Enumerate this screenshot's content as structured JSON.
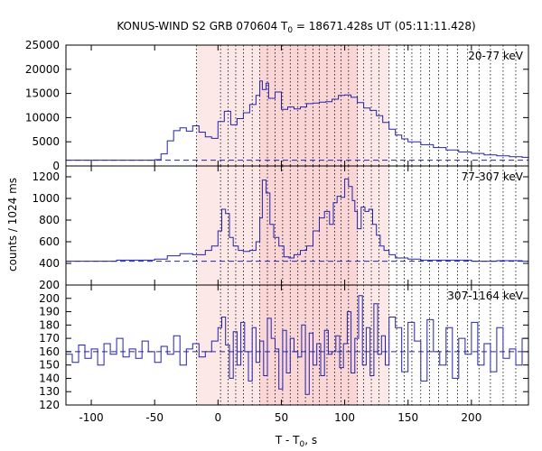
{
  "chart_data": {
    "type": "line",
    "title": {
      "prefix": "KONUS-WIND S2 GRB 070604 T",
      "sub": "0",
      "suffix": " = 18671.428s UT (05:11:11.428)"
    },
    "xlabel": {
      "prefix": "T - T",
      "sub": "0",
      "suffix": ", s"
    },
    "ylabel": "counts / 1024 ms",
    "xlim": [
      -120,
      245
    ],
    "xticks": [
      -100,
      -50,
      0,
      50,
      100,
      150,
      200
    ],
    "x_tick_labels": [
      "-100",
      "-50",
      "0",
      "50",
      "100",
      "150",
      "200"
    ],
    "colors": {
      "series": "#2222aa",
      "shade": "#fde8e8",
      "shade_dark": "#f8c6c6",
      "vlines": "#000000"
    },
    "shaded_region": [
      -17,
      135
    ],
    "darker_region": [
      33,
      110
    ],
    "dotted_vlines": [
      -17,
      2,
      8,
      14,
      20,
      27,
      33,
      39,
      45,
      51,
      57,
      63,
      69,
      75,
      80,
      86,
      92,
      97,
      103,
      110,
      115,
      121,
      127,
      135,
      141,
      147,
      153,
      160,
      167,
      174,
      181,
      189,
      197,
      206,
      215,
      225,
      235
    ],
    "panels": [
      {
        "label": "20-77 keV",
        "ylim": [
          0,
          25000
        ],
        "yticks": [
          0,
          5000,
          10000,
          15000,
          20000,
          25000
        ],
        "y_tick_labels": [
          "0",
          "5000",
          "10000",
          "15000",
          "20000",
          "25000"
        ],
        "background": 1200,
        "series": {
          "name": "20-77 keV",
          "x": [
            -120,
            -50,
            -45,
            -40,
            -35,
            -30,
            -25,
            -20,
            -15,
            -10,
            -5,
            0,
            5,
            10,
            15,
            20,
            25,
            30,
            33,
            35,
            38,
            40,
            45,
            50,
            55,
            60,
            65,
            70,
            75,
            80,
            85,
            90,
            95,
            100,
            105,
            110,
            115,
            120,
            125,
            130,
            135,
            140,
            145,
            150,
            160,
            170,
            180,
            190,
            200,
            210,
            220,
            230,
            240
          ],
          "y": [
            1200,
            1300,
            2500,
            5200,
            7300,
            7900,
            7200,
            8300,
            7000,
            6000,
            5700,
            9200,
            11300,
            8500,
            9800,
            11000,
            12700,
            14600,
            17600,
            15800,
            17100,
            14000,
            15300,
            11700,
            12200,
            11800,
            12200,
            12900,
            13000,
            13200,
            13300,
            13800,
            14600,
            14700,
            14200,
            13100,
            12000,
            11500,
            10400,
            9000,
            7600,
            6400,
            5600,
            5000,
            4400,
            3800,
            3300,
            2900,
            2600,
            2300,
            2100,
            1900,
            1800
          ]
        }
      },
      {
        "label": "77-307 keV",
        "ylim": [
          200,
          1300
        ],
        "yticks": [
          200,
          400,
          600,
          800,
          1000,
          1200
        ],
        "y_tick_labels": [
          "200",
          "400",
          "600",
          "800",
          "1000",
          "1200"
        ],
        "background": 420,
        "series": {
          "name": "77-307 keV",
          "x": [
            -120,
            -80,
            -50,
            -40,
            -30,
            -20,
            -10,
            -5,
            0,
            3,
            6,
            9,
            12,
            16,
            20,
            25,
            30,
            33,
            35,
            38,
            41,
            44,
            48,
            52,
            56,
            60,
            65,
            70,
            75,
            80,
            84,
            88,
            91,
            94,
            97,
            100,
            103,
            106,
            108,
            110,
            113,
            116,
            119,
            122,
            125,
            128,
            131,
            135,
            140,
            150,
            160,
            180,
            200,
            220,
            240
          ],
          "y": [
            420,
            430,
            440,
            470,
            490,
            480,
            520,
            560,
            700,
            900,
            860,
            640,
            560,
            520,
            510,
            520,
            600,
            820,
            1170,
            1050,
            760,
            640,
            560,
            460,
            450,
            480,
            520,
            560,
            700,
            820,
            880,
            760,
            960,
            1020,
            1010,
            1180,
            1110,
            980,
            880,
            720,
            920,
            880,
            900,
            760,
            660,
            560,
            520,
            480,
            450,
            440,
            430,
            430,
            420,
            425,
            420
          ]
        }
      },
      {
        "label": "307-1164 keV",
        "ylim": [
          120,
          210
        ],
        "yticks": [
          120,
          130,
          140,
          150,
          160,
          170,
          180,
          190,
          200
        ],
        "y_tick_labels": [
          "120",
          "130",
          "140",
          "150",
          "160",
          "170",
          "180",
          "190",
          "200"
        ],
        "background": 160,
        "series": {
          "name": "307-1164 keV",
          "x": [
            -120,
            -115,
            -110,
            -105,
            -100,
            -95,
            -90,
            -85,
            -80,
            -75,
            -70,
            -65,
            -60,
            -55,
            -50,
            -45,
            -40,
            -35,
            -30,
            -25,
            -20,
            -15,
            -10,
            -5,
            0,
            3,
            6,
            9,
            12,
            15,
            18,
            21,
            24,
            27,
            30,
            33,
            36,
            39,
            42,
            45,
            48,
            51,
            54,
            57,
            60,
            63,
            66,
            69,
            72,
            75,
            78,
            81,
            84,
            87,
            90,
            93,
            96,
            99,
            102,
            105,
            108,
            111,
            114,
            117,
            120,
            123,
            126,
            129,
            132,
            135,
            140,
            145,
            150,
            155,
            160,
            165,
            170,
            175,
            180,
            185,
            190,
            195,
            200,
            205,
            210,
            215,
            220,
            225,
            230,
            235,
            240
          ],
          "y": [
            158,
            152,
            165,
            155,
            162,
            150,
            166,
            158,
            170,
            156,
            162,
            155,
            168,
            160,
            152,
            164,
            158,
            172,
            150,
            162,
            166,
            156,
            160,
            168,
            178,
            186,
            165,
            140,
            175,
            150,
            182,
            160,
            138,
            178,
            152,
            168,
            142,
            185,
            170,
            162,
            132,
            176,
            144,
            170,
            160,
            156,
            180,
            128,
            174,
            150,
            166,
            142,
            176,
            158,
            160,
            172,
            148,
            166,
            190,
            144,
            170,
            202,
            150,
            178,
            142,
            196,
            158,
            172,
            150,
            186,
            178,
            145,
            182,
            168,
            138,
            184,
            160,
            150,
            178,
            140,
            170,
            158,
            182,
            150,
            166,
            145,
            178,
            155,
            162,
            150,
            170
          ]
        }
      }
    ]
  }
}
